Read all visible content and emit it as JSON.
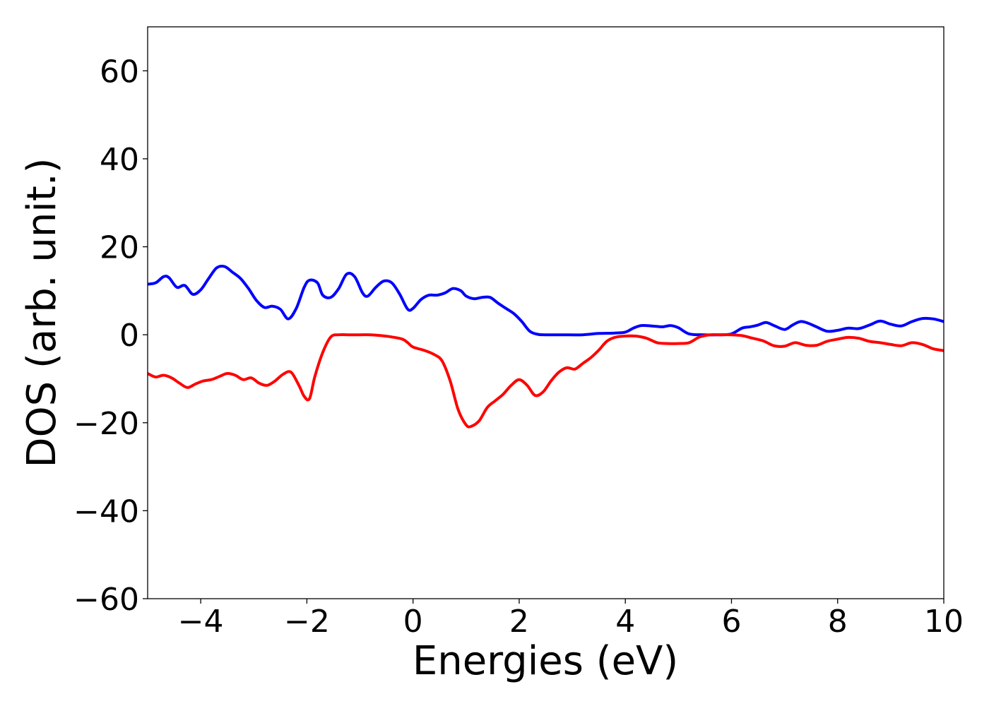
{
  "chart_data": {
    "type": "line",
    "title": "",
    "xlabel": "Energies (eV)",
    "ylabel": "DOS (arb. unit.)",
    "xlim": [
      -5,
      10
    ],
    "ylim": [
      -60,
      70
    ],
    "xticks": [
      -4,
      -2,
      0,
      2,
      4,
      6,
      8,
      10
    ],
    "xtick_labels": [
      "−4",
      "−2",
      "0",
      "2",
      "4",
      "6",
      "8",
      "10"
    ],
    "yticks": [
      -60,
      -40,
      -20,
      0,
      20,
      40,
      60
    ],
    "ytick_labels": [
      "−60",
      "−40",
      "−20",
      "0",
      "20",
      "40",
      "60"
    ],
    "grid": false,
    "legend": "none",
    "series": [
      {
        "color": "#0000ff",
        "x": [
          -5.0,
          -4.85,
          -4.7,
          -4.6,
          -4.45,
          -4.3,
          -4.15,
          -4.0,
          -3.85,
          -3.7,
          -3.55,
          -3.4,
          -3.25,
          -3.1,
          -2.95,
          -2.8,
          -2.65,
          -2.5,
          -2.35,
          -2.2,
          -2.05,
          -1.95,
          -1.8,
          -1.7,
          -1.55,
          -1.4,
          -1.25,
          -1.1,
          -0.95,
          -0.85,
          -0.7,
          -0.55,
          -0.4,
          -0.25,
          -0.1,
          0.0,
          0.15,
          0.3,
          0.45,
          0.6,
          0.75,
          0.9,
          1.0,
          1.15,
          1.3,
          1.45,
          1.6,
          1.75,
          1.9,
          2.05,
          2.2,
          2.35,
          2.5,
          2.8,
          3.2,
          3.5,
          3.8,
          4.0,
          4.15,
          4.3,
          4.5,
          4.7,
          4.85,
          5.0,
          5.2,
          5.5,
          5.8,
          6.0,
          6.2,
          6.35,
          6.5,
          6.65,
          6.8,
          7.0,
          7.15,
          7.3,
          7.45,
          7.6,
          7.8,
          8.0,
          8.2,
          8.4,
          8.6,
          8.8,
          9.0,
          9.2,
          9.4,
          9.6,
          9.8,
          10.0
        ],
        "y": [
          11.5,
          11.8,
          13.2,
          13.0,
          10.8,
          11.2,
          9.2,
          10.2,
          12.8,
          15.2,
          15.5,
          14.2,
          12.8,
          10.5,
          7.8,
          6.2,
          6.5,
          5.8,
          3.6,
          6.0,
          10.8,
          12.4,
          11.8,
          9.0,
          8.5,
          10.5,
          13.8,
          13.2,
          9.5,
          8.8,
          10.8,
          12.2,
          11.8,
          9.2,
          5.8,
          6.0,
          8.0,
          9.0,
          9.0,
          9.5,
          10.5,
          10.0,
          8.8,
          8.2,
          8.5,
          8.5,
          7.2,
          6.0,
          4.8,
          3.0,
          0.8,
          0.1,
          0.0,
          0.0,
          0.0,
          0.3,
          0.4,
          0.6,
          1.5,
          2.1,
          2.0,
          1.8,
          2.1,
          1.6,
          0.2,
          0.0,
          0.0,
          0.2,
          1.5,
          1.8,
          2.2,
          2.8,
          2.1,
          1.2,
          2.2,
          3.0,
          2.6,
          1.8,
          0.8,
          1.0,
          1.5,
          1.4,
          2.2,
          3.1,
          2.4,
          2.0,
          3.0,
          3.7,
          3.6,
          3.0
        ]
      },
      {
        "color": "#ff0000",
        "x": [
          -5.0,
          -4.85,
          -4.7,
          -4.55,
          -4.4,
          -4.25,
          -4.1,
          -3.95,
          -3.8,
          -3.65,
          -3.5,
          -3.35,
          -3.2,
          -3.05,
          -2.9,
          -2.75,
          -2.6,
          -2.45,
          -2.3,
          -2.15,
          -2.05,
          -1.95,
          -1.85,
          -1.7,
          -1.55,
          -1.4,
          -1.2,
          -1.0,
          -0.8,
          -0.6,
          -0.4,
          -0.2,
          -0.1,
          0.0,
          0.2,
          0.4,
          0.55,
          0.7,
          0.85,
          1.0,
          1.1,
          1.25,
          1.4,
          1.55,
          1.7,
          1.85,
          2.0,
          2.15,
          2.3,
          2.45,
          2.6,
          2.75,
          2.9,
          3.05,
          3.2,
          3.35,
          3.5,
          3.65,
          3.8,
          4.0,
          4.2,
          4.4,
          4.6,
          4.8,
          5.0,
          5.2,
          5.4,
          5.6,
          5.8,
          6.0,
          6.2,
          6.4,
          6.6,
          6.8,
          7.0,
          7.2,
          7.4,
          7.6,
          7.8,
          8.0,
          8.2,
          8.4,
          8.6,
          8.8,
          9.0,
          9.2,
          9.4,
          9.6,
          9.8,
          10.0
        ],
        "y": [
          -8.8,
          -9.6,
          -9.2,
          -9.8,
          -11.0,
          -12.0,
          -11.2,
          -10.5,
          -10.2,
          -9.5,
          -8.8,
          -9.2,
          -10.2,
          -9.8,
          -11.0,
          -11.5,
          -10.5,
          -9.0,
          -8.5,
          -11.5,
          -14.0,
          -14.5,
          -9.5,
          -4.0,
          -0.5,
          0.0,
          0.0,
          0.0,
          0.0,
          -0.2,
          -0.5,
          -1.0,
          -1.8,
          -2.8,
          -3.5,
          -4.5,
          -6.0,
          -10.5,
          -17.0,
          -20.5,
          -20.8,
          -19.5,
          -16.5,
          -15.0,
          -13.5,
          -11.5,
          -10.2,
          -11.5,
          -13.8,
          -13.0,
          -10.5,
          -8.5,
          -7.5,
          -7.8,
          -6.5,
          -5.2,
          -3.5,
          -1.5,
          -0.6,
          -0.3,
          -0.3,
          -0.8,
          -1.8,
          -2.0,
          -2.0,
          -1.8,
          -0.5,
          0.0,
          0.0,
          0.0,
          -0.2,
          -0.8,
          -1.4,
          -2.5,
          -2.6,
          -1.8,
          -2.4,
          -2.4,
          -1.5,
          -1.0,
          -0.6,
          -0.8,
          -1.5,
          -1.8,
          -2.2,
          -2.5,
          -1.8,
          -2.2,
          -3.2,
          -3.6
        ]
      }
    ]
  }
}
